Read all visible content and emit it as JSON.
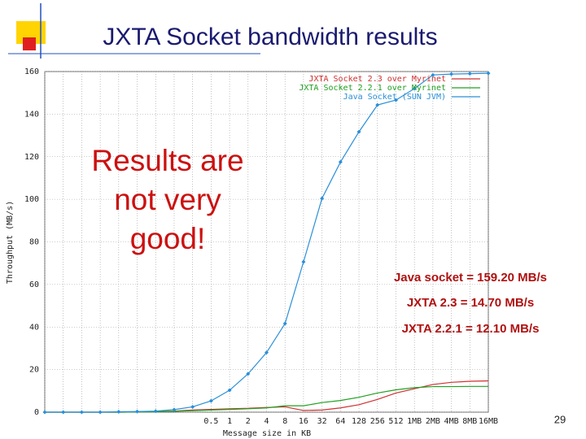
{
  "chart_data": {
    "type": "line",
    "title": "JXTA Socket bandwidth results",
    "x_label": "Message size in KB",
    "y_label": "Throughput (MB/s)",
    "categories": [
      null,
      null,
      null,
      null,
      null,
      null,
      null,
      null,
      null,
      "0.5",
      "1",
      "2",
      "4",
      "8",
      "16",
      "32",
      "64",
      "128",
      "256",
      "512",
      "1MB",
      "2MB",
      "4MB",
      "8MB",
      "16MB"
    ],
    "series": [
      {
        "name": "JXTA Socket 2.3 over Myrinet",
        "color": "#d03030",
        "values": [
          0,
          0,
          0,
          0,
          0,
          0.1,
          0.3,
          0.5,
          1,
          1.3,
          1.6,
          1.8,
          2.2,
          2.5,
          0.8,
          1,
          2,
          3.5,
          6,
          9,
          11,
          13,
          14,
          14.5,
          14.7
        ]
      },
      {
        "name": "JXTA Socket 2.2.1 over Myrinet",
        "color": "#20a020",
        "values": [
          0,
          0,
          0,
          0,
          0,
          0.1,
          0.2,
          0.4,
          0.7,
          1,
          1.3,
          1.6,
          2,
          3,
          3,
          4.5,
          5.5,
          7,
          9,
          10.5,
          11.5,
          12,
          12,
          12.1,
          12.1
        ]
      },
      {
        "name": "Java Socket (SUN JVM)",
        "color": "#2a8fd8",
        "values": [
          0,
          0,
          0,
          0,
          0.2,
          0.3,
          0.5,
          1.2,
          2.5,
          5.3,
          10.3,
          18,
          28,
          41.6,
          70.6,
          100.4,
          117.5,
          131.7,
          144.3,
          146.6,
          152,
          158.4,
          158.8,
          159,
          159.2
        ]
      }
    ],
    "ylim": [
      0,
      160
    ],
    "yticks": [
      0,
      20,
      40,
      60,
      80,
      100,
      120,
      140,
      160
    ],
    "grid": true,
    "legend": "top-right",
    "marker_series": 2,
    "callout": [
      "Results are",
      "not very",
      "good!"
    ],
    "annotations": [
      "Java socket = 159.20 MB/s",
      "JXTA 2.3 = 14.70 MB/s",
      "JXTA 2.2.1 = 12.10 MB/s"
    ],
    "page_number": "29"
  }
}
